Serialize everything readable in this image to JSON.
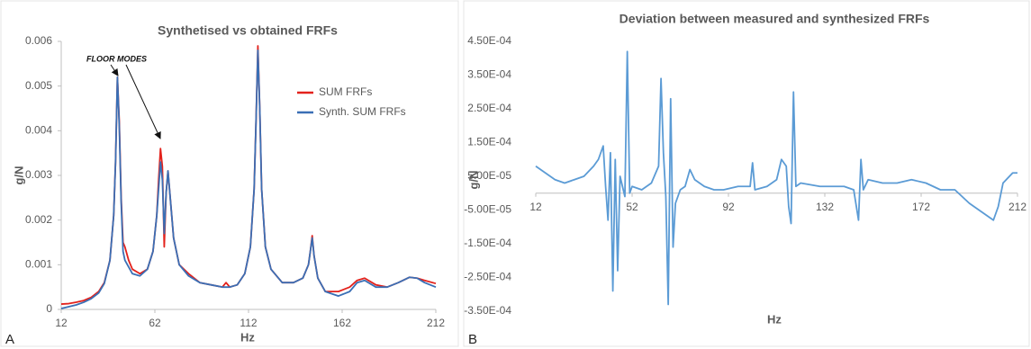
{
  "chart_data": [
    {
      "type": "line",
      "panel_label": "A",
      "title": "Synthetised vs obtained FRFs",
      "x_label": "Hz",
      "y_label": "g/N",
      "annotation": "FLOOR MODES",
      "legend": "upper-right",
      "grid": false,
      "x": [
        12,
        16,
        20,
        24,
        28,
        32,
        35,
        38,
        40,
        41,
        42,
        43,
        44,
        45,
        46,
        48,
        50,
        54,
        58,
        61,
        63,
        64,
        65,
        66,
        67,
        68,
        69,
        70,
        72,
        75,
        80,
        86,
        92,
        98,
        100,
        102,
        106,
        110,
        113,
        115,
        116,
        117,
        118,
        119,
        121,
        124,
        130,
        136,
        141,
        144,
        145,
        146,
        147,
        149,
        153,
        160,
        166,
        170,
        174,
        180,
        186,
        192,
        198,
        202,
        206,
        212
      ],
      "series": [
        {
          "name": "SUM FRFs",
          "color": "#e3221c",
          "values": [
            0.00012,
            0.00013,
            0.00016,
            0.0002,
            0.00027,
            0.0004,
            0.0006,
            0.0011,
            0.0021,
            0.0033,
            0.0052,
            0.0042,
            0.0025,
            0.0015,
            0.0014,
            0.0011,
            0.0009,
            0.0008,
            0.0009,
            0.0013,
            0.0021,
            0.0029,
            0.0036,
            0.0032,
            0.0014,
            0.0026,
            0.0031,
            0.0026,
            0.0016,
            0.001,
            0.0008,
            0.0006,
            0.00055,
            0.0005,
            0.0006,
            0.0005,
            0.00055,
            0.0008,
            0.0014,
            0.0027,
            0.0042,
            0.0059,
            0.0045,
            0.0027,
            0.0014,
            0.0009,
            0.0006,
            0.0006,
            0.0007,
            0.001,
            0.0013,
            0.00165,
            0.0012,
            0.0007,
            0.0004,
            0.0004,
            0.0005,
            0.00065,
            0.0007,
            0.00055,
            0.0005,
            0.0006,
            0.00072,
            0.0007,
            0.00065,
            0.00058
          ]
        },
        {
          "name": "Synth. SUM FRFs",
          "color": "#3a6fb5",
          "values": [
            2e-05,
            6e-05,
            0.0001,
            0.00016,
            0.00024,
            0.00037,
            0.00058,
            0.0011,
            0.0021,
            0.0033,
            0.0052,
            0.0041,
            0.0024,
            0.0013,
            0.0011,
            0.00095,
            0.0008,
            0.00075,
            0.0009,
            0.0013,
            0.0021,
            0.0027,
            0.0033,
            0.0029,
            0.0017,
            0.0026,
            0.0031,
            0.0026,
            0.0016,
            0.001,
            0.00075,
            0.0006,
            0.00055,
            0.0005,
            0.0005,
            0.0005,
            0.00055,
            0.0008,
            0.0014,
            0.0027,
            0.0042,
            0.0058,
            0.0045,
            0.0027,
            0.0014,
            0.0009,
            0.0006,
            0.0006,
            0.0007,
            0.001,
            0.0013,
            0.0016,
            0.0012,
            0.0007,
            0.0004,
            0.0003,
            0.0004,
            0.0006,
            0.00065,
            0.0005,
            0.0005,
            0.0006,
            0.00072,
            0.0007,
            0.0006,
            0.0005
          ]
        }
      ],
      "xlim": [
        12,
        212
      ],
      "xticks": [
        12,
        62,
        112,
        162,
        212
      ],
      "ylim": [
        0,
        0.006
      ],
      "yticks": [
        0,
        0.001,
        0.002,
        0.003,
        0.004,
        0.005,
        0.006
      ]
    },
    {
      "type": "line",
      "panel_label": "B",
      "title": "Deviation between measured and synthesized FRFs",
      "x_label": "Hz",
      "y_label": "g/N",
      "grid": false,
      "x": [
        12,
        16,
        20,
        24,
        28,
        32,
        36,
        38,
        40,
        41,
        42,
        43,
        44,
        45,
        46,
        47,
        48,
        49,
        50,
        51,
        52,
        56,
        60,
        63,
        64,
        65,
        66,
        67,
        68,
        69,
        70,
        72,
        74,
        76,
        78,
        82,
        86,
        90,
        96,
        101,
        102,
        103,
        108,
        112,
        114,
        116,
        117,
        118,
        119,
        120,
        122,
        130,
        140,
        144,
        146,
        147,
        148,
        150,
        156,
        162,
        168,
        174,
        180,
        186,
        192,
        198,
        202,
        204,
        206,
        210,
        212
      ],
      "series": [
        {
          "name": "Deviation",
          "color": "#5b9bd5",
          "values": [
            8e-05,
            6e-05,
            4e-05,
            3e-05,
            4e-05,
            5e-05,
            8e-05,
            0.0001,
            0.00014,
            2e-05,
            -8e-05,
            0.00012,
            -0.00029,
            0.0001,
            -0.00023,
            5e-05,
            2e-05,
            -1e-05,
            0.00042,
            0,
            2e-05,
            1e-05,
            3e-05,
            8e-05,
            0.00034,
            0.00012,
            -1e-05,
            -0.00033,
            0.00028,
            -0.00016,
            -3e-05,
            1e-05,
            2e-05,
            7e-05,
            4e-05,
            2e-05,
            1e-05,
            1e-05,
            2e-05,
            2e-05,
            9e-05,
            1e-05,
            2e-05,
            4e-05,
            0.0001,
            8e-05,
            -4e-05,
            -9e-05,
            0.0003,
            2e-05,
            3e-05,
            2e-05,
            2e-05,
            1e-05,
            -8e-05,
            0.0001,
            1e-05,
            4e-05,
            3e-05,
            3e-05,
            4e-05,
            3e-05,
            1e-05,
            1e-05,
            -3e-05,
            -6e-05,
            -8e-05,
            -4e-05,
            3e-05,
            6e-05,
            6e-05
          ]
        }
      ],
      "xlim": [
        12,
        212
      ],
      "xticks": [
        12,
        52,
        92,
        132,
        172,
        212
      ],
      "ylim": [
        -0.00035,
        0.00045
      ],
      "yticks": [
        {
          "value": -0.00035,
          "label": "-3.50E-04"
        },
        {
          "value": -0.00025,
          "label": "-2.50E-04"
        },
        {
          "value": -0.00015,
          "label": "-1.50E-04"
        },
        {
          "value": -5e-05,
          "label": "-5.00E-05"
        },
        {
          "value": 5e-05,
          "label": "5.00E-05"
        },
        {
          "value": 0.00015,
          "label": "1.50E-04"
        },
        {
          "value": 0.00025,
          "label": "2.50E-04"
        },
        {
          "value": 0.00035,
          "label": "3.50E-04"
        },
        {
          "value": 0.00045,
          "label": "4.50E-04"
        }
      ]
    }
  ]
}
